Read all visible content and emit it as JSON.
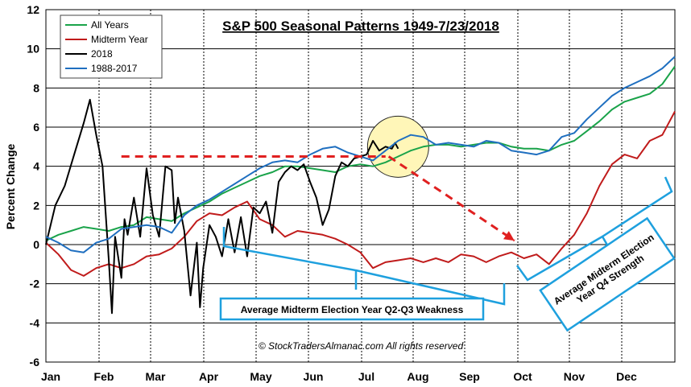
{
  "chart_data": {
    "type": "line",
    "title": "S&P 500 Seasonal Patterns 1949-7/23/2018",
    "ylabel": "Percent Change",
    "xlabel": "",
    "ylim": [
      -6,
      12
    ],
    "yticks": [
      -6,
      -4,
      -2,
      0,
      2,
      4,
      6,
      8,
      10,
      12
    ],
    "months": [
      "Jan",
      "Feb",
      "Mar",
      "Apr",
      "May",
      "Jun",
      "Jul",
      "Aug",
      "Sep",
      "Oct",
      "Nov",
      "Dec"
    ],
    "grid": "horizontal and monthly vertical",
    "legend_position": "top-left",
    "x_unit": "fraction of year (0 = Jan 1, 1 = Dec 31)",
    "series": [
      {
        "name": "All Years",
        "color": "#1aa34a",
        "x": [
          0,
          0.02,
          0.04,
          0.06,
          0.08,
          0.1,
          0.12,
          0.14,
          0.16,
          0.18,
          0.2,
          0.22,
          0.24,
          0.26,
          0.28,
          0.3,
          0.32,
          0.34,
          0.36,
          0.38,
          0.4,
          0.42,
          0.44,
          0.46,
          0.48,
          0.5,
          0.52,
          0.54,
          0.56,
          0.58,
          0.6,
          0.62,
          0.64,
          0.66,
          0.68,
          0.7,
          0.72,
          0.74,
          0.76,
          0.78,
          0.8,
          0.82,
          0.84,
          0.86,
          0.88,
          0.9,
          0.92,
          0.94,
          0.96,
          0.98,
          1.0
        ],
        "values": [
          0.2,
          0.5,
          0.7,
          0.9,
          0.8,
          0.7,
          0.9,
          1.0,
          1.4,
          1.3,
          1.2,
          1.6,
          1.9,
          2.2,
          2.6,
          2.9,
          3.2,
          3.5,
          3.7,
          4.0,
          4.0,
          3.9,
          3.8,
          3.7,
          4.0,
          4.1,
          4.0,
          4.2,
          4.5,
          4.8,
          5.0,
          5.1,
          5.1,
          5.0,
          5.1,
          5.2,
          5.2,
          5.0,
          4.9,
          4.9,
          4.8,
          5.1,
          5.3,
          5.8,
          6.3,
          6.9,
          7.3,
          7.5,
          7.7,
          8.2,
          9.1
        ]
      },
      {
        "name": "Midterm Year",
        "color": "#c01b1b",
        "x": [
          0,
          0.02,
          0.04,
          0.06,
          0.08,
          0.1,
          0.12,
          0.14,
          0.16,
          0.18,
          0.2,
          0.22,
          0.24,
          0.26,
          0.28,
          0.3,
          0.32,
          0.34,
          0.36,
          0.38,
          0.4,
          0.42,
          0.44,
          0.46,
          0.48,
          0.5,
          0.52,
          0.54,
          0.56,
          0.58,
          0.6,
          0.62,
          0.64,
          0.66,
          0.68,
          0.7,
          0.72,
          0.74,
          0.76,
          0.78,
          0.8,
          0.82,
          0.84,
          0.86,
          0.88,
          0.9,
          0.92,
          0.94,
          0.96,
          0.98,
          1.0
        ],
        "values": [
          0.1,
          -0.5,
          -1.3,
          -1.6,
          -1.2,
          -1.0,
          -1.2,
          -1.0,
          -0.6,
          -0.5,
          -0.2,
          0.4,
          1.2,
          1.6,
          1.5,
          1.9,
          2.2,
          1.3,
          1.0,
          0.4,
          0.7,
          0.6,
          0.5,
          0.3,
          0.0,
          -0.4,
          -1.2,
          -0.9,
          -0.8,
          -0.7,
          -0.9,
          -0.7,
          -0.9,
          -0.5,
          -0.6,
          -0.9,
          -0.6,
          -0.4,
          -0.7,
          -0.5,
          -1.0,
          -0.2,
          0.5,
          1.6,
          3.0,
          4.1,
          4.6,
          4.4,
          5.3,
          5.6,
          6.8
        ]
      },
      {
        "name": "2018",
        "color": "#000000",
        "x": [
          0,
          0.015,
          0.03,
          0.045,
          0.06,
          0.07,
          0.08,
          0.09,
          0.1,
          0.105,
          0.11,
          0.12,
          0.125,
          0.13,
          0.14,
          0.15,
          0.16,
          0.17,
          0.18,
          0.19,
          0.2,
          0.205,
          0.21,
          0.22,
          0.23,
          0.24,
          0.245,
          0.25,
          0.26,
          0.27,
          0.28,
          0.29,
          0.3,
          0.31,
          0.32,
          0.33,
          0.34,
          0.35,
          0.36,
          0.37,
          0.38,
          0.39,
          0.4,
          0.41,
          0.42,
          0.43,
          0.44,
          0.45,
          0.46,
          0.47,
          0.48,
          0.49,
          0.5,
          0.51,
          0.52,
          0.53,
          0.54,
          0.55,
          0.555,
          0.56
        ],
        "values": [
          0.0,
          2.0,
          3.0,
          4.6,
          6.2,
          7.4,
          5.6,
          4.0,
          -0.8,
          -3.5,
          0.4,
          -1.7,
          1.3,
          0.5,
          2.4,
          0.4,
          3.9,
          1.5,
          0.4,
          4.0,
          3.8,
          1.1,
          2.4,
          0.7,
          -2.6,
          0.1,
          -3.2,
          -1.2,
          1.0,
          0.4,
          -0.6,
          1.3,
          -0.4,
          1.4,
          -0.6,
          1.9,
          1.6,
          2.2,
          0.6,
          3.2,
          3.7,
          4.0,
          3.8,
          4.1,
          3.2,
          2.4,
          1.0,
          1.8,
          3.5,
          4.2,
          4.0,
          4.4,
          4.5,
          4.6,
          5.3,
          4.8,
          5.0,
          4.9,
          5.2,
          4.9
        ]
      },
      {
        "name": "1988-2017",
        "color": "#1f6fc0",
        "x": [
          0,
          0.02,
          0.04,
          0.06,
          0.08,
          0.1,
          0.12,
          0.14,
          0.16,
          0.18,
          0.2,
          0.22,
          0.24,
          0.26,
          0.28,
          0.3,
          0.32,
          0.34,
          0.36,
          0.38,
          0.4,
          0.42,
          0.44,
          0.46,
          0.48,
          0.5,
          0.52,
          0.54,
          0.56,
          0.58,
          0.6,
          0.62,
          0.64,
          0.66,
          0.68,
          0.7,
          0.72,
          0.74,
          0.76,
          0.78,
          0.8,
          0.82,
          0.84,
          0.86,
          0.88,
          0.9,
          0.92,
          0.94,
          0.96,
          0.98,
          1.0
        ],
        "values": [
          0.4,
          0.1,
          -0.3,
          -0.4,
          0.1,
          0.3,
          0.8,
          0.9,
          1.0,
          0.9,
          0.6,
          1.5,
          2.0,
          2.3,
          2.7,
          3.1,
          3.5,
          3.9,
          4.2,
          4.3,
          4.2,
          4.6,
          4.9,
          5.0,
          4.7,
          4.5,
          4.3,
          4.8,
          5.3,
          5.6,
          5.5,
          5.1,
          5.2,
          5.1,
          5.0,
          5.3,
          5.2,
          4.8,
          4.7,
          4.6,
          4.8,
          5.5,
          5.7,
          6.4,
          7.0,
          7.6,
          8.0,
          8.3,
          8.6,
          9.0,
          9.6
        ]
      }
    ],
    "annotations": {
      "weakness_label": "Average Midterm Election Year Q2-Q3 Weakness",
      "strength_label": "Average Midterm Election Year Q4 Strength",
      "copyright": "© StockTradersAlmanac.com All rights reserved",
      "dashed_level": 4.5,
      "dashed_start": 0.12,
      "dashed_end": 0.54,
      "arrow_from": [
        0.545,
        4.5
      ],
      "arrow_to": [
        0.745,
        0.2
      ],
      "circle_center": [
        0.56,
        5.0
      ]
    }
  }
}
